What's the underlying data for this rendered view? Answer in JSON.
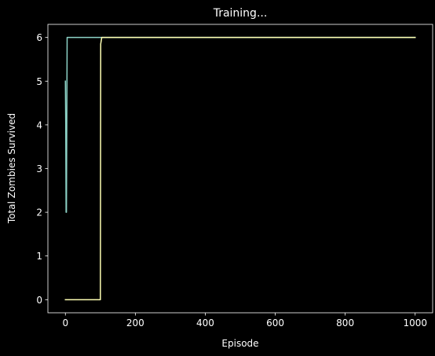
{
  "chart_data": {
    "type": "line",
    "title": "Training...",
    "xlabel": "Episode",
    "ylabel": "Total Zombies Survived",
    "xlim": [
      -50,
      1050
    ],
    "ylim": [
      -0.3,
      6.3
    ],
    "xticks": [
      0,
      200,
      400,
      600,
      800,
      1000
    ],
    "yticks": [
      0,
      1,
      2,
      3,
      4,
      5,
      6
    ],
    "grid": false,
    "legend": "none",
    "series": [
      {
        "color": "#8dd3c7",
        "x": [
          0,
          1,
          2,
          3,
          4,
          5,
          6,
          1000
        ],
        "y": [
          5,
          4,
          2,
          2,
          4,
          6,
          6,
          6
        ]
      },
      {
        "color": "#feffb3",
        "x": [
          0,
          100,
          101,
          104,
          1000
        ],
        "y": [
          0,
          0,
          5.85,
          6,
          6
        ]
      }
    ]
  }
}
